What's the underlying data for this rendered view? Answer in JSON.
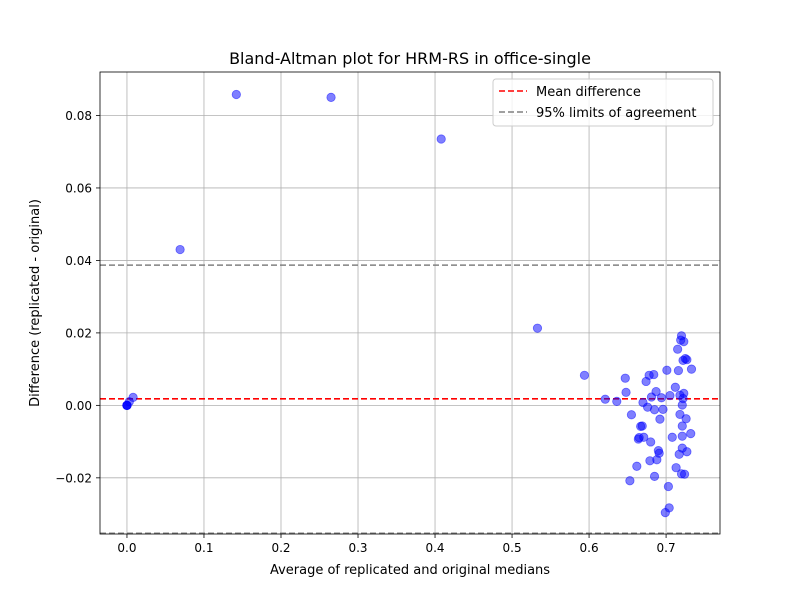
{
  "chart_data": {
    "type": "scatter",
    "title": "Bland-Altman plot for HRM-RS in office-single",
    "xlabel": "Average of replicated and original medians",
    "ylabel": "Difference (replicated - original)",
    "xlim": [
      -0.035,
      0.77
    ],
    "ylim": [
      -0.0355,
      0.092
    ],
    "x_ticks": [
      0.0,
      0.1,
      0.2,
      0.3,
      0.4,
      0.5,
      0.6,
      0.7
    ],
    "x_tick_labels": [
      "0.0",
      "0.1",
      "0.2",
      "0.3",
      "0.4",
      "0.5",
      "0.6",
      "0.7"
    ],
    "y_ticks": [
      -0.02,
      0.0,
      0.02,
      0.04,
      0.06,
      0.08
    ],
    "y_tick_labels": [
      "−0.02",
      "0.00",
      "0.02",
      "0.04",
      "0.06",
      "0.08"
    ],
    "grid": true,
    "legend_position": "top-right",
    "point_color": "#0000ff",
    "point_opacity": 0.5,
    "reference_lines": [
      {
        "name": "Mean difference",
        "y": 0.0018,
        "color": "#ff0000",
        "style": "dashed"
      },
      {
        "name": "95% limits of agreement",
        "y": 0.0387,
        "color": "#808080",
        "style": "dashed"
      },
      {
        "name": "95% limits of agreement",
        "y": -0.0353,
        "color": "#808080",
        "style": "dashed"
      }
    ],
    "legend": [
      {
        "label": "Mean difference",
        "color": "#ff0000"
      },
      {
        "label": "95% limits of agreement",
        "color": "#808080"
      }
    ],
    "series": [
      {
        "points": [
          {
            "x": 0.0,
            "y": 0.0
          },
          {
            "x": 0.0,
            "y": 0.0
          },
          {
            "x": 0.0,
            "y": 0.0
          },
          {
            "x": 0.0,
            "y": 0.0
          },
          {
            "x": 0.003,
            "y": 0.001
          },
          {
            "x": 0.008,
            "y": 0.0022
          },
          {
            "x": 0.069,
            "y": 0.043
          },
          {
            "x": 0.142,
            "y": 0.0858
          },
          {
            "x": 0.265,
            "y": 0.085
          },
          {
            "x": 0.408,
            "y": 0.0735
          },
          {
            "x": 0.533,
            "y": 0.0213
          },
          {
            "x": 0.594,
            "y": 0.0083
          },
          {
            "x": 0.621,
            "y": 0.0017
          },
          {
            "x": 0.636,
            "y": 0.0011
          },
          {
            "x": 0.647,
            "y": 0.0075
          },
          {
            "x": 0.648,
            "y": 0.0036
          },
          {
            "x": 0.653,
            "y": -0.0208
          },
          {
            "x": 0.655,
            "y": -0.0026
          },
          {
            "x": 0.662,
            "y": -0.0168
          },
          {
            "x": 0.664,
            "y": -0.0093
          },
          {
            "x": 0.665,
            "y": -0.0089
          },
          {
            "x": 0.667,
            "y": -0.0058
          },
          {
            "x": 0.669,
            "y": -0.0057
          },
          {
            "x": 0.67,
            "y": 0.0008
          },
          {
            "x": 0.671,
            "y": -0.0088
          },
          {
            "x": 0.674,
            "y": 0.0066
          },
          {
            "x": 0.676,
            "y": -0.0005
          },
          {
            "x": 0.678,
            "y": 0.0083
          },
          {
            "x": 0.679,
            "y": -0.0153
          },
          {
            "x": 0.68,
            "y": -0.0101
          },
          {
            "x": 0.681,
            "y": 0.0023
          },
          {
            "x": 0.684,
            "y": 0.0085
          },
          {
            "x": 0.685,
            "y": -0.0012
          },
          {
            "x": 0.685,
            "y": -0.0196
          },
          {
            "x": 0.687,
            "y": 0.0038
          },
          {
            "x": 0.688,
            "y": -0.015
          },
          {
            "x": 0.69,
            "y": -0.0125
          },
          {
            "x": 0.691,
            "y": -0.0132
          },
          {
            "x": 0.692,
            "y": -0.0038
          },
          {
            "x": 0.694,
            "y": 0.0021
          },
          {
            "x": 0.696,
            "y": -0.0011
          },
          {
            "x": 0.699,
            "y": -0.0296
          },
          {
            "x": 0.701,
            "y": 0.0097
          },
          {
            "x": 0.703,
            "y": -0.0224
          },
          {
            "x": 0.704,
            "y": -0.0283
          },
          {
            "x": 0.705,
            "y": 0.0027
          },
          {
            "x": 0.708,
            "y": -0.0088
          },
          {
            "x": 0.712,
            "y": 0.005
          },
          {
            "x": 0.713,
            "y": -0.0172
          },
          {
            "x": 0.715,
            "y": 0.0155
          },
          {
            "x": 0.716,
            "y": 0.0096
          },
          {
            "x": 0.717,
            "y": -0.0135
          },
          {
            "x": 0.718,
            "y": -0.0025
          },
          {
            "x": 0.718,
            "y": 0.0028
          },
          {
            "x": 0.719,
            "y": 0.018
          },
          {
            "x": 0.72,
            "y": 0.0192
          },
          {
            "x": 0.72,
            "y": -0.0189
          },
          {
            "x": 0.721,
            "y": -0.0118
          },
          {
            "x": 0.721,
            "y": 0.0001
          },
          {
            "x": 0.721,
            "y": -0.0057
          },
          {
            "x": 0.721,
            "y": -0.0085
          },
          {
            "x": 0.722,
            "y": 0.0124
          },
          {
            "x": 0.722,
            "y": 0.0019
          },
          {
            "x": 0.723,
            "y": 0.0176
          },
          {
            "x": 0.723,
            "y": 0.0033
          },
          {
            "x": 0.724,
            "y": -0.019
          },
          {
            "x": 0.725,
            "y": 0.0129
          },
          {
            "x": 0.726,
            "y": -0.0037
          },
          {
            "x": 0.727,
            "y": 0.0126
          },
          {
            "x": 0.727,
            "y": -0.0128
          },
          {
            "x": 0.732,
            "y": -0.0078
          },
          {
            "x": 0.733,
            "y": 0.01
          }
        ]
      }
    ]
  }
}
